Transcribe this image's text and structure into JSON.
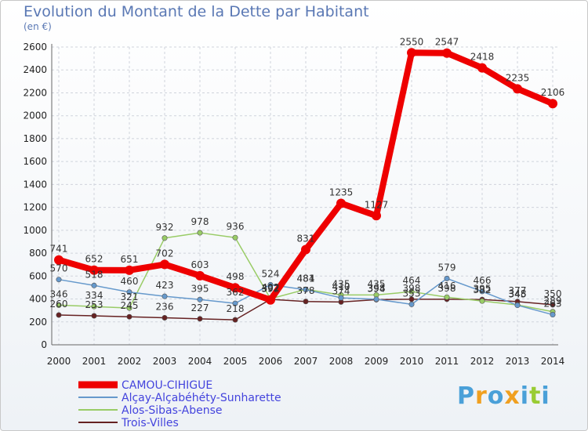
{
  "chart_data": {
    "type": "line",
    "title": "Evolution du Montant de la Dette par Habitant",
    "subtitle": "(en €)",
    "xlabel": "",
    "ylabel": "",
    "ylim": [
      0,
      2600
    ],
    "yticks": [
      0,
      200,
      400,
      600,
      800,
      1000,
      1200,
      1400,
      1600,
      1800,
      2000,
      2200,
      2400,
      2600
    ],
    "x": [
      "2000",
      "2001",
      "2002",
      "2003",
      "2004",
      "2005",
      "2006",
      "2007",
      "2008",
      "2009",
      "2010",
      "2011",
      "2012",
      "2013",
      "2014"
    ],
    "legend_position": "bottom-left",
    "series": [
      {
        "name": "CAMOU-CIHIGUE",
        "color": "#ee0000",
        "values": [
          741,
          652,
          651,
          702,
          603,
          498,
          392,
          831,
          1235,
          1127,
          2550,
          2547,
          2418,
          2235,
          2106
        ],
        "labels": [
          "741",
          "652",
          "651",
          "702",
          "603",
          "498",
          "392",
          "831",
          "1235",
          "1127",
          "2550",
          "2547",
          "2418",
          "2235",
          "2106"
        ]
      },
      {
        "name": "Alçay-Alçabéhéty-Sunharette",
        "color": "#6699cc",
        "values": [
          570,
          518,
          460,
          423,
          395,
          362,
          524,
          481,
          410,
          398,
          353,
          579,
          466,
          345,
          263
        ],
        "labels": [
          "570",
          "518",
          "460",
          "423",
          "395",
          "362",
          "524",
          "481",
          "410",
          "398",
          "353",
          "579",
          "466",
          "345",
          "263"
        ]
      },
      {
        "name": "Alos-Sibas-Abense",
        "color": "#99cc66",
        "values": [
          346,
          334,
          321,
          932,
          978,
          936,
          402,
          484,
          435,
          435,
          464,
          416,
          382,
          348,
          289
        ],
        "labels": [
          "346",
          "334",
          "321",
          "932",
          "978",
          "936",
          "402",
          "484",
          "435",
          "435",
          "464",
          "416",
          "382",
          "348",
          "289"
        ]
      },
      {
        "name": "Trois-Villes",
        "color": "#662222",
        "values": [
          260,
          253,
          245,
          236,
          227,
          218,
          397,
          378,
          374,
          394,
          398,
          398,
          395,
          377,
          350
        ],
        "labels": [
          "260",
          "253",
          "245",
          "236",
          "227",
          "218",
          "397",
          "378",
          "374",
          "394",
          "398",
          "398",
          "395",
          "377",
          "350"
        ]
      }
    ]
  },
  "logo": {
    "text": "Proxiti",
    "letter_colors": [
      "#4aa0d8",
      "#f0a020",
      "#4aa0d8",
      "#f0a020",
      "#4aa0d8",
      "#99cc33",
      "#4aa0d8"
    ]
  }
}
